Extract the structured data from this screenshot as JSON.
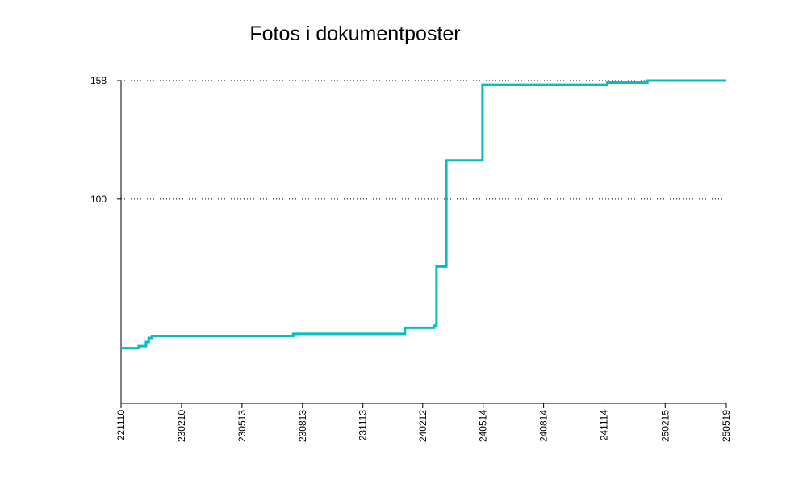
{
  "chart_data": {
    "type": "step",
    "title": "Fotos i dokumentposter",
    "x": [
      "221110",
      "221207",
      "221218",
      "221222",
      "221227",
      "230730",
      "240116",
      "240229",
      "240304",
      "240319",
      "240513",
      "241119",
      "250119",
      "250519"
    ],
    "series": [
      {
        "color": "#00c0c0",
        "values": [
          27,
          28,
          30,
          32,
          33,
          34,
          37,
          38,
          67,
          119,
          156,
          157,
          158,
          158
        ]
      }
    ],
    "xlim": [
      "221110",
      "250519"
    ],
    "xticks": [
      "221110",
      "230210",
      "230513",
      "230813",
      "231113",
      "240212",
      "240514",
      "240814",
      "241114",
      "250215",
      "250519"
    ],
    "ylim": [
      0,
      158
    ],
    "yticks": [
      100,
      158
    ],
    "grid": true
  }
}
